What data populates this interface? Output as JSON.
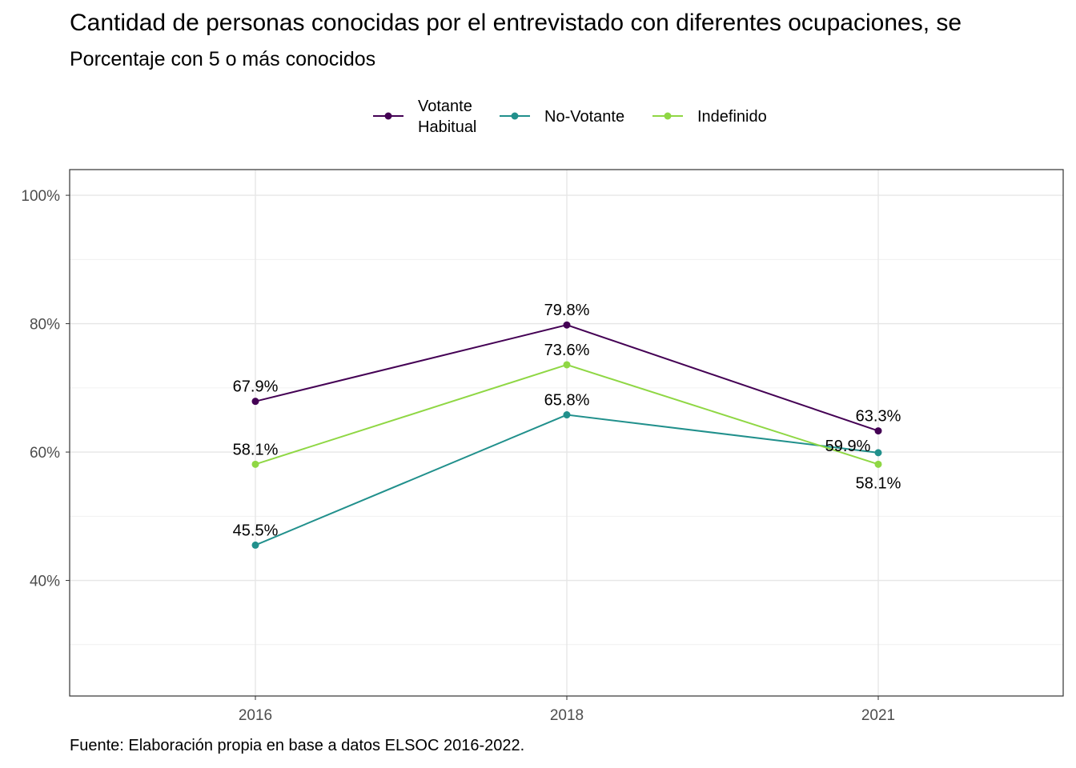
{
  "title": "Cantidad de personas conocidas por el entrevistado con diferentes ocupaciones, se",
  "subtitle": "Porcentaje con 5 o más conocidos",
  "caption": "Fuente: Elaboración propia en base a datos ELSOC 2016-2022.",
  "chart_data": {
    "type": "line",
    "x": [
      "2016",
      "2018",
      "2021"
    ],
    "ylim": [
      22,
      104
    ],
    "y_ticks": [
      40,
      60,
      80,
      100
    ],
    "y_tick_labels": [
      "40%",
      "60%",
      "80%",
      "100%"
    ],
    "grid": true,
    "legend_position": "top",
    "series": [
      {
        "name": "Votante\nHabitual",
        "legend_lines": [
          "Votante",
          "Habitual"
        ],
        "color": "#440154",
        "values": [
          67.9,
          79.8,
          63.3
        ],
        "labels": [
          "67.9%",
          "79.8%",
          "63.3%"
        ]
      },
      {
        "name": "No-Votante",
        "legend_lines": [
          "No-Votante"
        ],
        "color": "#21908C",
        "values": [
          45.5,
          65.8,
          59.9
        ],
        "labels": [
          "45.5%",
          "65.8%",
          "59.9%"
        ]
      },
      {
        "name": "Indefinido",
        "legend_lines": [
          "Indefinido"
        ],
        "color": "#8FD744",
        "values": [
          58.1,
          73.6,
          58.1
        ],
        "labels": [
          "58.1%",
          "73.6%",
          "58.1%"
        ]
      }
    ]
  }
}
